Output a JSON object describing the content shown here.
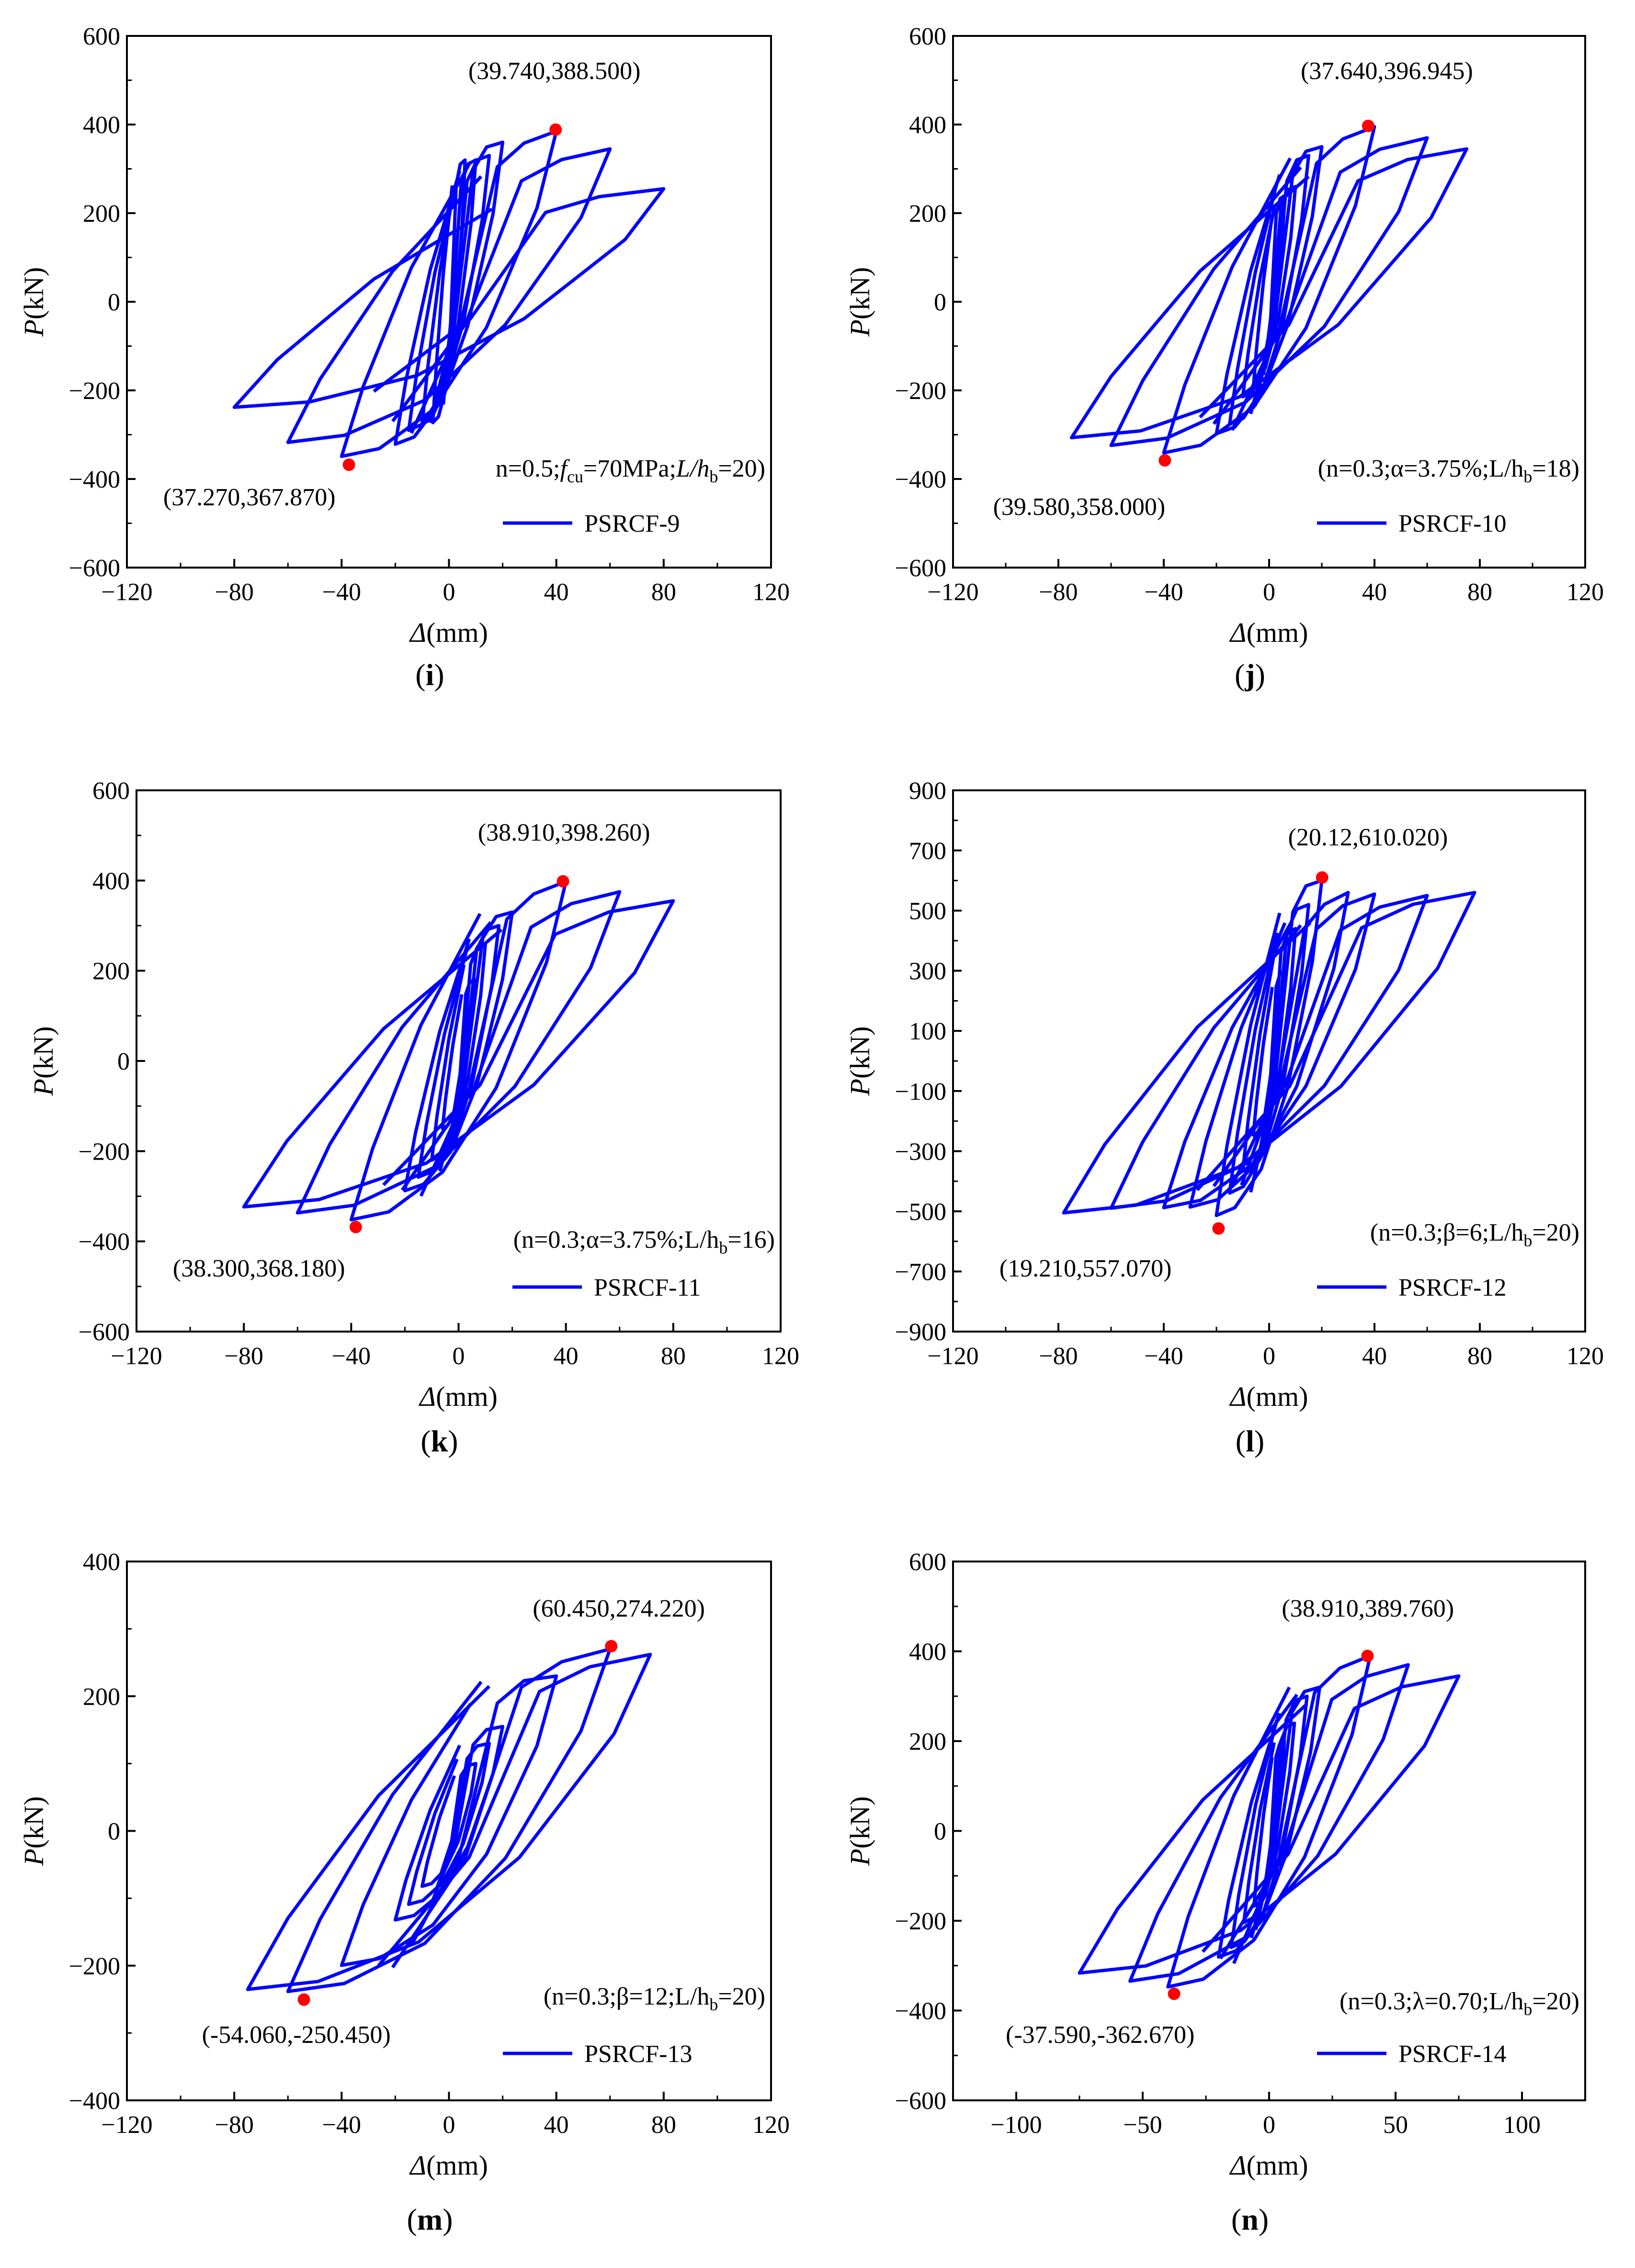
{
  "chart_data": [
    {
      "type": "line",
      "panel_label": "i",
      "xlabel_symbol": "Δ",
      "xlabel_unit": "(mm)",
      "ylabel_symbol": "P",
      "ylabel_unit": "(kN)",
      "xlim": [
        -120,
        120
      ],
      "ylim": [
        -600,
        600
      ],
      "xticks": [
        -120,
        -80,
        -40,
        0,
        40,
        80,
        120
      ],
      "yticks": [
        -600,
        -400,
        -200,
        0,
        200,
        400,
        600
      ],
      "series": [
        {
          "name": "PSRCF-9",
          "color": "#0000ff",
          "loops": [
            [
              6,
              320
            ],
            [
              10,
              320
            ],
            [
              15,
              330
            ],
            [
              20,
              360
            ],
            [
              40,
              385
            ],
            [
              60,
              345
            ],
            [
              80,
              255
            ]
          ],
          "baseline_positive": [
            300,
            240,
            240,
            250,
            255
          ]
        }
      ],
      "legend": "PSRCF-9",
      "params": {
        "n": "n=0.5;",
        "f_sym": "f",
        "f_sub": "cu",
        "f_rest": "=70MPa;",
        "l_sym": "L/h",
        "l_sub": "b",
        "l_rest": "=20)"
      },
      "peak_pos": {
        "x": 39.74,
        "y": 388.5,
        "label": "(39.740,388.500)"
      },
      "peak_neg": {
        "x": -37.27,
        "y": -367.87,
        "label": "(37.270,367.870)"
      }
    },
    {
      "type": "line",
      "panel_label": "j",
      "xlabel_symbol": "Δ",
      "xlabel_unit": "(mm)",
      "ylabel_symbol": "P",
      "ylabel_unit": "(kN)",
      "xlim": [
        -120,
        120
      ],
      "ylim": [
        -600,
        600
      ],
      "xticks": [
        -120,
        -80,
        -40,
        0,
        40,
        80,
        120
      ],
      "yticks": [
        -600,
        -400,
        -200,
        0,
        200,
        400,
        600
      ],
      "series": [
        {
          "name": "PSRCF-10",
          "color": "#0000ff",
          "loops": [
            [
              6,
              240
            ],
            [
              10,
              260
            ],
            [
              15,
              330
            ],
            [
              20,
              350
            ],
            [
              40,
              395
            ],
            [
              60,
              370
            ],
            [
              75,
              345
            ]
          ]
        }
      ],
      "legend": "PSRCF-10",
      "params": {
        "text": "(n=0.3;α=3.75%;L/h",
        "sub": "b",
        "rest": "=18)"
      },
      "peak_pos": {
        "x": 37.64,
        "y": 396.945,
        "label": "(37.640,396.945)"
      },
      "peak_neg": {
        "x": -39.58,
        "y": -358.0,
        "label": "(39.580,358.000)"
      }
    },
    {
      "type": "line",
      "panel_label": "k",
      "xlabel_symbol": "Δ",
      "xlabel_unit": "(mm)",
      "ylabel_symbol": "P",
      "ylabel_unit": "(kN)",
      "xlim": [
        -120,
        120
      ],
      "ylim": [
        -600,
        600
      ],
      "xticks": [
        -120,
        -80,
        -40,
        0,
        40,
        80,
        120
      ],
      "yticks": [
        -600,
        -400,
        -200,
        0,
        200,
        400,
        600
      ],
      "series": [
        {
          "name": "PSRCF-11",
          "color": "#0000ff",
          "loops": [
            [
              6,
              180
            ],
            [
              10,
              260
            ],
            [
              15,
              300
            ],
            [
              20,
              330
            ],
            [
              40,
              398
            ],
            [
              60,
              375
            ],
            [
              80,
              355
            ]
          ]
        }
      ],
      "legend": "PSRCF-11",
      "params": {
        "text": "(n=0.3;α=3.75%;L/h",
        "sub": "b",
        "rest": "=16)"
      },
      "peak_pos": {
        "x": 38.91,
        "y": 398.26,
        "label": "(38.910,398.260)"
      },
      "peak_neg": {
        "x": -38.3,
        "y": -368.18,
        "label": "(38.300,368.180)"
      }
    },
    {
      "type": "line",
      "panel_label": "l",
      "xlabel_symbol": "Δ",
      "xlabel_unit": "(mm)",
      "ylabel_symbol": "P",
      "ylabel_unit": "(kN)",
      "xlim": [
        -120,
        120
      ],
      "ylim": [
        -900,
        900
      ],
      "xticks": [
        -120,
        -80,
        -40,
        0,
        40,
        80,
        120
      ],
      "yticks": [
        -900,
        -700,
        -500,
        -300,
        -100,
        100,
        300,
        500,
        700,
        900
      ],
      "series": [
        {
          "name": "PSRCF-12",
          "color": "#0000ff",
          "loops": [
            [
              6,
              300
            ],
            [
              10,
              440
            ],
            [
              15,
              520
            ],
            [
              20,
              600
            ],
            [
              30,
              560
            ],
            [
              40,
              555
            ],
            [
              60,
              550
            ],
            [
              78,
              560
            ]
          ]
        }
      ],
      "legend": "PSRCF-12",
      "params": {
        "text": "(n=0.3;β=6;L/h",
        "sub": "b",
        "rest": "=20)"
      },
      "peak_pos": {
        "x": 20.12,
        "y": 610.02,
        "label": "(20.12,610.020)"
      },
      "peak_neg": {
        "x": -19.21,
        "y": -557.07,
        "label": "(19.210,557.070)"
      }
    },
    {
      "type": "line",
      "panel_label": "m",
      "xlabel_symbol": "Δ",
      "xlabel_unit": "(mm)",
      "ylabel_symbol": "P",
      "ylabel_unit": "(kN)",
      "xlim": [
        -120,
        120
      ],
      "ylim": [
        -400,
        400
      ],
      "xticks": [
        -120,
        -80,
        -40,
        0,
        40,
        80,
        120
      ],
      "yticks": [
        -400,
        -200,
        0,
        200,
        400
      ],
      "series": [
        {
          "name": "PSRCF-13",
          "color": "#0000ff",
          "loops": [
            [
              10,
              100
            ],
            [
              15,
              130
            ],
            [
              20,
              155
            ],
            [
              40,
              230
            ],
            [
              60,
              270
            ],
            [
              75,
              262
            ]
          ]
        }
      ],
      "legend": "PSRCF-13",
      "params": {
        "text": "(n=0.3;β=12;L/h",
        "sub": "b",
        "rest": "=20)"
      },
      "peak_pos": {
        "x": 60.45,
        "y": 274.22,
        "label": "(60.450,274.220)"
      },
      "peak_neg": {
        "x": -54.06,
        "y": -250.45,
        "label": "(-54.060,-250.450)"
      }
    },
    {
      "type": "line",
      "panel_label": "n",
      "xlabel_symbol": "Δ",
      "xlabel_unit": "(mm)",
      "ylabel_symbol": "P",
      "ylabel_unit": "(kN)",
      "xlim": [
        -125,
        125
      ],
      "ylim": [
        -600,
        600
      ],
      "xticks": [
        -100,
        -50,
        0,
        50,
        100
      ],
      "yticks": [
        -600,
        -400,
        -200,
        0,
        200,
        400,
        600
      ],
      "series": [
        {
          "name": "PSRCF-14",
          "color": "#0000ff",
          "loops": [
            [
              6,
              200
            ],
            [
              10,
              240
            ],
            [
              15,
              300
            ],
            [
              20,
              320
            ],
            [
              40,
              390
            ],
            [
              55,
              370
            ],
            [
              75,
              345
            ]
          ]
        }
      ],
      "legend": "PSRCF-14",
      "params": {
        "text": "(n=0.3;λ=0.70;L/h",
        "sub": "b",
        "rest": "=20)"
      },
      "peak_pos": {
        "x": 38.91,
        "y": 389.76,
        "label": "(38.910,389.760)"
      },
      "peak_neg": {
        "x": -37.59,
        "y": -362.67,
        "label": "(-37.590,-362.670)"
      }
    }
  ],
  "colors": {
    "curve": "#0000ff",
    "peak_marker": "#ff0000",
    "axis": "#000000"
  }
}
